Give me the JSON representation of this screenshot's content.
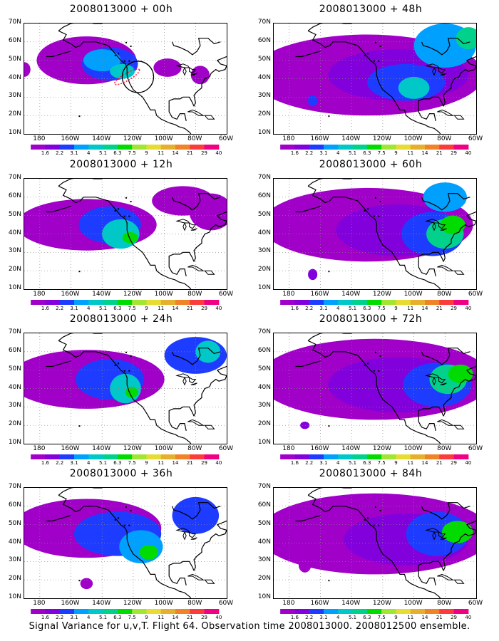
{
  "caption": "Signal Variance for u,v,T. Flight 64. Observation time 2008013000. 2008012500 ensemble.",
  "colorbar": {
    "labels": [
      "1.6",
      "2.2",
      "3.1",
      "4",
      "5.1",
      "6.3",
      "7.5",
      "9",
      "11",
      "14",
      "21",
      "29",
      "40"
    ],
    "colors": [
      "#a000c8",
      "#8200dc",
      "#1e3cff",
      "#00a0ff",
      "#00c8c8",
      "#00d28c",
      "#00dc00",
      "#a0e632",
      "#e6dc32",
      "#e6af2d",
      "#f08228",
      "#fa3c3c",
      "#f00082"
    ]
  },
  "axes": {
    "lat_labels": [
      "70N",
      "60N",
      "50N",
      "40N",
      "30N",
      "20N",
      "10N"
    ],
    "lon_labels": [
      "180",
      "160W",
      "140W",
      "120W",
      "100W",
      "80W",
      "60W"
    ],
    "lat_range": [
      10,
      70
    ],
    "lon_range": [
      -190,
      -60
    ]
  },
  "panels": [
    {
      "title": "2008013000 + 00h"
    },
    {
      "title": "2008013000 + 48h"
    },
    {
      "title": "2008013000 + 12h"
    },
    {
      "title": "2008013000 + 60h"
    },
    {
      "title": "2008013000 + 24h"
    },
    {
      "title": "2008013000 + 72h"
    },
    {
      "title": "2008013000 + 36h"
    },
    {
      "title": "2008013000 + 84h"
    }
  ]
}
